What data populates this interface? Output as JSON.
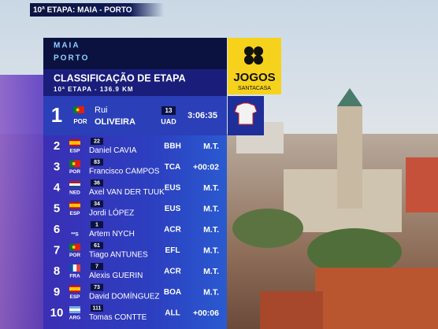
{
  "header": {
    "stage": "10ª ETAPA: MAIA - PORTO"
  },
  "route": {
    "start": "MAIA",
    "finish": "PORTO"
  },
  "board": {
    "title": "CLASSIFICAÇÃO DE ETAPA",
    "subtitle": "10ª ETAPA - 136.9 KM"
  },
  "sponsor": {
    "name": "JOGOS",
    "brand": "SANTACASA"
  },
  "results": [
    {
      "rank": 1,
      "country": "POR",
      "number": 13,
      "first_name": "Rui",
      "last_name": "OLIVEIRA",
      "team": "UAD",
      "time": "3:06:35"
    },
    {
      "rank": 2,
      "country": "ESP",
      "number": 22,
      "first_name": "Daniel",
      "last_name": "CAVIA",
      "team": "BBH",
      "time": "M.T."
    },
    {
      "rank": 3,
      "country": "POR",
      "number": 83,
      "first_name": "Francisco",
      "last_name": "CAMPOS",
      "team": "TCA",
      "time": "+00:02"
    },
    {
      "rank": 4,
      "country": "NED",
      "number": 36,
      "first_name": "Axel",
      "last_name": "VAN DER TUUK",
      "team": "EUS",
      "time": "M.T."
    },
    {
      "rank": 5,
      "country": "ESP",
      "number": 34,
      "first_name": "Jordi",
      "last_name": "LÓPEZ",
      "team": "EUS",
      "time": "M.T."
    },
    {
      "rank": 6,
      "country": "**S",
      "number": 1,
      "first_name": "Artem",
      "last_name": "NYCH",
      "team": "ACR",
      "time": "M.T."
    },
    {
      "rank": 7,
      "country": "POR",
      "number": 61,
      "first_name": "Tiago",
      "last_name": "ANTUNES",
      "team": "EFL",
      "time": "M.T."
    },
    {
      "rank": 8,
      "country": "FRA",
      "number": 7,
      "first_name": "Alexis",
      "last_name": "GUERIN",
      "team": "ACR",
      "time": "M.T."
    },
    {
      "rank": 9,
      "country": "ESP",
      "number": 73,
      "first_name": "David",
      "last_name": "DOMÍNGUEZ",
      "team": "BOA",
      "time": "M.T."
    },
    {
      "rank": 10,
      "country": "ARG",
      "number": 111,
      "first_name": "Tomas",
      "last_name": "CONTTE",
      "team": "ALL",
      "time": "+00:06"
    }
  ]
}
